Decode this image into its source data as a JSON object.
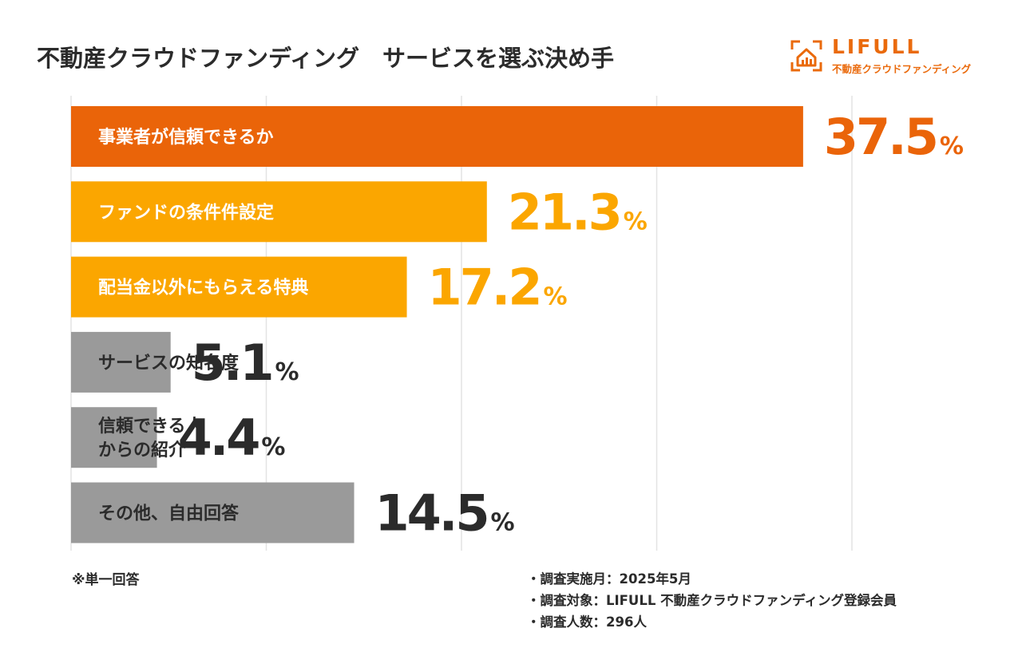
{
  "title": "不動産クラウドファンディング　サービスを選ぶ決め手",
  "logo": {
    "name": "LIFULL",
    "subtitle": "不動産クラウドファンディング",
    "icon": "house-chart-icon"
  },
  "footnote": "※単一回答",
  "meta": [
    "・調査実施月：2025年5月",
    "・調査対象：LIFULL 不動産クラウドファンディング登録会員",
    "・調査人数：296人"
  ],
  "colors": {
    "top": "#ea6409",
    "accent": "#fba600",
    "other": "#9a9a9a",
    "value_top": "#ea6409",
    "value_accent": "#fba600",
    "value_other": "#2b2b2b",
    "grid": "#e3e3e3"
  },
  "chart_data": {
    "type": "bar",
    "orientation": "horizontal",
    "title": "不動産クラウドファンディング　サービスを選ぶ決め手",
    "unit": "%",
    "xlim": [
      0,
      40
    ],
    "grid": true,
    "categories": [
      [
        "事業者が信頼できるか"
      ],
      [
        "ファンドの条件件設定"
      ],
      [
        "配当金以外にもらえる特典"
      ],
      [
        "サービスの知名度"
      ],
      [
        "信頼できる人",
        "からの紹介"
      ],
      [
        "その他、自由回答"
      ]
    ],
    "values": [
      37.5,
      21.3,
      17.2,
      5.1,
      4.4,
      14.5
    ],
    "value_labels": [
      "37.5",
      "21.3",
      "17.2",
      "5.1",
      "4.4",
      "14.5"
    ],
    "color_groups": [
      "top",
      "accent",
      "accent",
      "other",
      "other",
      "other"
    ]
  }
}
